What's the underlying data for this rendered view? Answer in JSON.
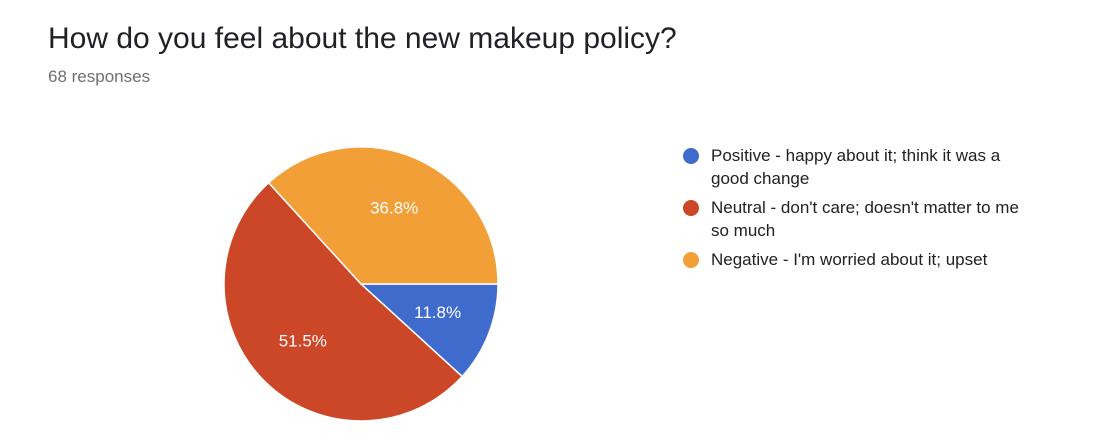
{
  "title": "How do you feel about the new makeup policy?",
  "subtitle": "68 responses",
  "chart_data": {
    "type": "pie",
    "title": "How do you feel about the new makeup policy?",
    "subtitle": "68 responses",
    "legend_position": "right",
    "slices": [
      {
        "label": "Positive - happy about it; think it was a good change",
        "value": 11.8,
        "display": "11.8%",
        "color": "#3f6bcc"
      },
      {
        "label": "Neutral - don't care; doesn't matter to me so much",
        "value": 51.5,
        "display": "51.5%",
        "color": "#cc4628"
      },
      {
        "label": "Negative - I'm worried about it; upset",
        "value": 36.8,
        "display": "36.8%",
        "color": "#f29f38"
      }
    ]
  }
}
